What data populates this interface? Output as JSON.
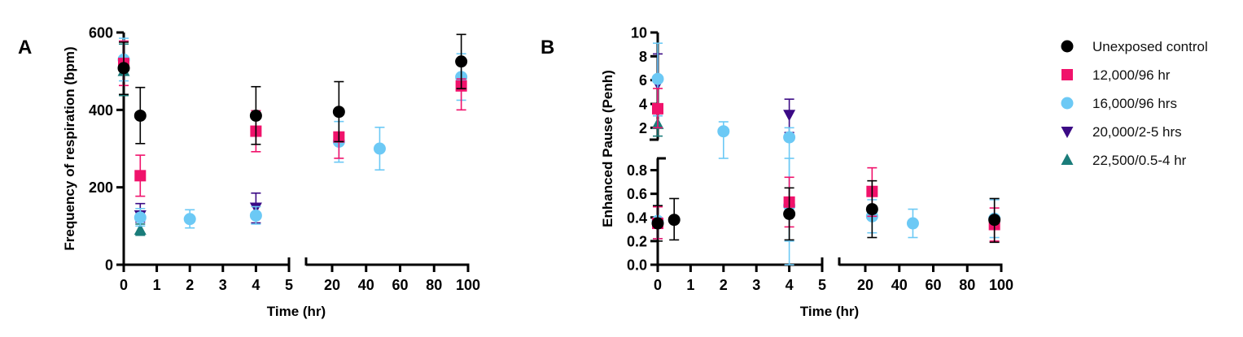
{
  "chart_data": [
    {
      "type": "scatter",
      "panel_label": "A",
      "title": "",
      "xlabel": "Time (hr)",
      "ylabel": "Frequency of respiration (bpm)",
      "x_axis_broken": true,
      "x_segments": [
        {
          "range": [
            0,
            5
          ],
          "ticks": [
            "0",
            "1",
            "2",
            "3",
            "4",
            "5"
          ]
        },
        {
          "range": [
            5,
            100
          ],
          "ticks": [
            "20",
            "40",
            "60",
            "80",
            "100"
          ]
        }
      ],
      "ylim": [
        0,
        600
      ],
      "y_ticks": [
        "0",
        "200",
        "400",
        "600"
      ],
      "series": [
        {
          "name": "Unexposed control",
          "points": [
            {
              "x": 0,
              "y": 508,
              "lo": 440,
              "hi": 575
            },
            {
              "x": 0.5,
              "y": 385,
              "lo": 313,
              "hi": 458
            },
            {
              "x": 4,
              "y": 385,
              "lo": 311,
              "hi": 460
            },
            {
              "x": 24,
              "y": 395,
              "lo": 318,
              "hi": 473
            },
            {
              "x": 96,
              "y": 525,
              "lo": 455,
              "hi": 595
            }
          ]
        },
        {
          "name": "12,000/96 hr",
          "points": [
            {
              "x": 0,
              "y": 520,
              "lo": 463,
              "hi": 578
            },
            {
              "x": 0.5,
              "y": 230,
              "lo": 177,
              "hi": 283
            },
            {
              "x": 4,
              "y": 345,
              "lo": 292,
              "hi": 398
            },
            {
              "x": 24,
              "y": 330,
              "lo": 275,
              "hi": 325
            },
            {
              "x": 96,
              "y": 462,
              "lo": 400,
              "hi": 480
            }
          ]
        },
        {
          "name": "16,000/96 hrs",
          "points": [
            {
              "x": 0,
              "y": 530,
              "lo": 475,
              "hi": 585
            },
            {
              "x": 0.5,
              "y": 122,
              "lo": 100,
              "hi": 145
            },
            {
              "x": 2,
              "y": 118,
              "lo": 95,
              "hi": 142
            },
            {
              "x": 4,
              "y": 127,
              "lo": 105,
              "hi": 150
            },
            {
              "x": 24,
              "y": 318,
              "lo": 265,
              "hi": 370
            },
            {
              "x": 48,
              "y": 300,
              "lo": 245,
              "hi": 355
            },
            {
              "x": 96,
              "y": 485,
              "lo": 425,
              "hi": 545
            }
          ]
        },
        {
          "name": "20,000/2-5 hrs",
          "points": [
            {
              "x": 0.5,
              "y": 128,
              "lo": 110,
              "hi": 158
            },
            {
              "x": 4,
              "y": 148,
              "lo": 108,
              "hi": 185
            }
          ]
        },
        {
          "name": "22,500/0.5-4 hr",
          "points": [
            {
              "x": 0,
              "y": 500,
              "lo": 437,
              "hi": 570
            },
            {
              "x": 0.5,
              "y": 90,
              "lo": 76,
              "hi": 105
            }
          ]
        }
      ]
    },
    {
      "type": "scatter",
      "panel_label": "B",
      "title": "",
      "xlabel": "Time (hr)",
      "ylabel": "Enhanced Pause (Penh)",
      "x_axis_broken": true,
      "y_axis_broken": true,
      "x_segments": [
        {
          "range": [
            0,
            5
          ],
          "ticks": [
            "0",
            "1",
            "2",
            "3",
            "4",
            "5"
          ]
        },
        {
          "range": [
            5,
            100
          ],
          "ticks": [
            "20",
            "40",
            "60",
            "80",
            "100"
          ]
        }
      ],
      "y_segments": [
        {
          "range": [
            0,
            0.9
          ],
          "ticks": [
            "0.0",
            "0.2",
            "0.4",
            "0.6",
            "0.8"
          ]
        },
        {
          "range": [
            1,
            10
          ],
          "ticks": [
            "2",
            "4",
            "6",
            "8",
            "10"
          ]
        }
      ],
      "series": [
        {
          "name": "Unexposed control",
          "points": [
            {
              "x": 0,
              "y": 0.35,
              "lo": 0.2,
              "hi": 0.5
            },
            {
              "x": 0.5,
              "y": 0.38,
              "lo": 0.21,
              "hi": 0.56
            },
            {
              "x": 4,
              "y": 0.43,
              "lo": 0.21,
              "hi": 0.65
            },
            {
              "x": 24,
              "y": 0.47,
              "lo": 0.23,
              "hi": 0.71
            },
            {
              "x": 96,
              "y": 0.38,
              "lo": 0.19,
              "hi": 0.56
            }
          ]
        },
        {
          "name": "12,000/96 hr",
          "points": [
            {
              "x": 0,
              "y": 3.6,
              "lo": 2.0,
              "hi": 5.3
            },
            {
              "x": 0,
              "y": 0.35,
              "lo": 0.22,
              "hi": 0.49
            },
            {
              "x": 4,
              "y": 0.53,
              "lo": 0.32,
              "hi": 0.74
            },
            {
              "x": 24,
              "y": 0.62,
              "lo": 0.41,
              "hi": 0.82
            },
            {
              "x": 96,
              "y": 0.34,
              "lo": 0.2,
              "hi": 0.48
            }
          ]
        },
        {
          "name": "16,000/96 hrs",
          "points": [
            {
              "x": 0,
              "y": 6.1,
              "lo": 3.0,
              "hi": 9.1
            },
            {
              "x": 0,
              "y": 0.37,
              "lo": 0.22,
              "hi": 0.5
            },
            {
              "x": 2,
              "y": 1.7,
              "lo": 0.9,
              "hi": 2.5
            },
            {
              "x": 4,
              "y": 1.2,
              "lo": 0.0,
              "hi": 2.0
            },
            {
              "x": 4,
              "y": 0.5,
              "lo": 0.2,
              "hi": 0.9
            },
            {
              "x": 24,
              "y": 0.41,
              "lo": 0.27,
              "hi": 0.55
            },
            {
              "x": 48,
              "y": 0.35,
              "lo": 0.23,
              "hi": 0.47
            },
            {
              "x": 96,
              "y": 0.39,
              "lo": 0.23,
              "hi": 0.55
            }
          ]
        },
        {
          "name": "20,000/2-5 hrs",
          "points": [
            {
              "x": 0,
              "y": 5.7,
              "lo": 3.0,
              "hi": 8.2
            },
            {
              "x": 4,
              "y": 3.1,
              "lo": 1.6,
              "hi": 4.4
            }
          ]
        },
        {
          "name": "22,500/0.5-4 hr",
          "points": [
            {
              "x": 0,
              "y": 2.3,
              "lo": 1.3,
              "hi": 3.0
            }
          ]
        }
      ]
    }
  ],
  "legend": {
    "placement": "right",
    "items": [
      {
        "name": "Unexposed control",
        "marker": "circle",
        "color": "#000000"
      },
      {
        "name": "12,000/96 hr",
        "marker": "square",
        "color": "#F0126B"
      },
      {
        "name": "16,000/96 hrs",
        "marker": "circle",
        "color": "#6CC9F5"
      },
      {
        "name": "20,000/2-5 hrs",
        "marker": "triangle-down",
        "color": "#3B0A85"
      },
      {
        "name": "22,500/0.5-4 hr",
        "marker": "triangle-up",
        "color": "#1A7C7A"
      }
    ]
  }
}
